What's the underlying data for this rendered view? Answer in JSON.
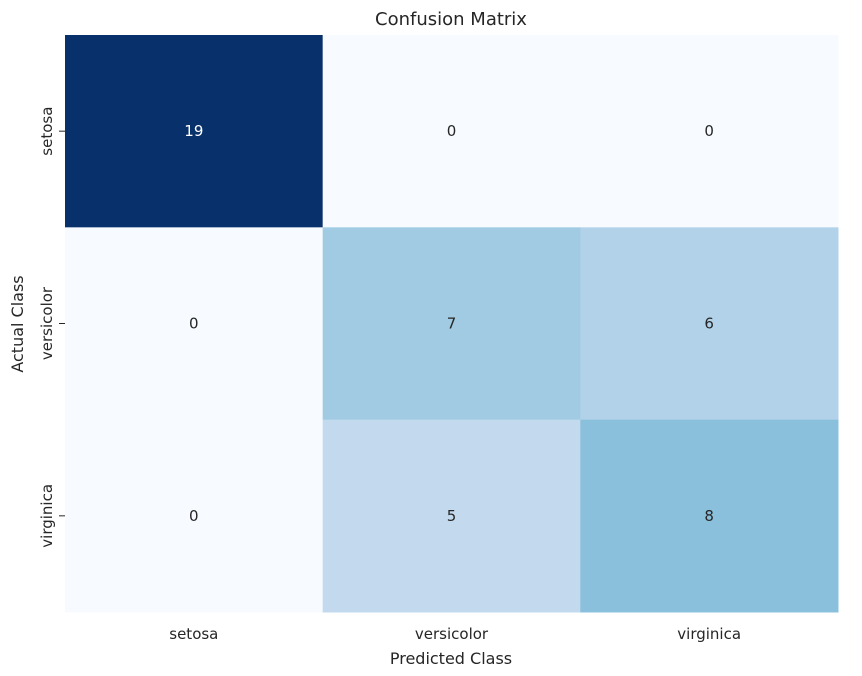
{
  "chart_data": {
    "type": "heatmap",
    "title": "Confusion Matrix",
    "xlabel": "Predicted Class",
    "ylabel": "Actual Class",
    "x_categories": [
      "setosa",
      "versicolor",
      "virginica"
    ],
    "y_categories": [
      "setosa",
      "versicolor",
      "virginica"
    ],
    "values": [
      [
        19,
        0,
        0
      ],
      [
        0,
        7,
        6
      ],
      [
        0,
        5,
        8
      ]
    ],
    "colormap": "Blues",
    "color_low": "#f7fbff",
    "color_high": "#08306b",
    "annotation_color_dark_cells": "#ffffff",
    "annotation_color_light_cells": "#262626",
    "colorbar": false
  }
}
